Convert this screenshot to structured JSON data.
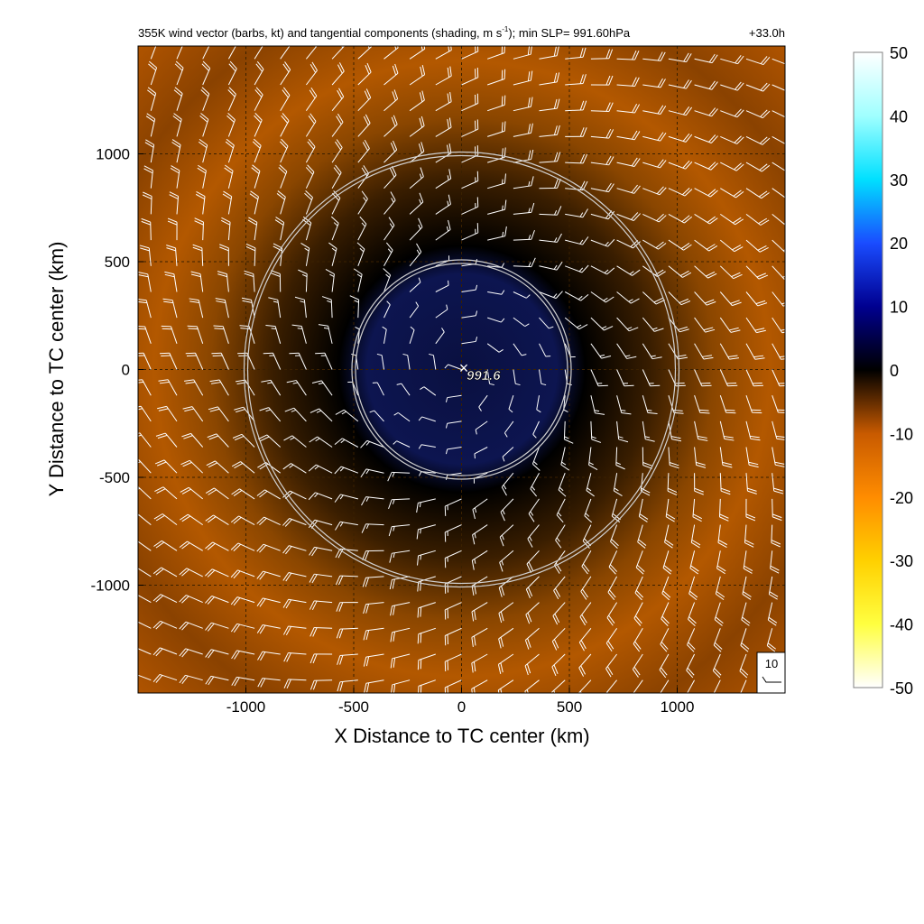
{
  "chart_data": {
    "type": "heatmap",
    "title_main": "355K wind vector (barbs, kt) and tangential components (shading, m s",
    "title_sup": "-1",
    "title_tail": "); min SLP= 991.60hPa",
    "time_label": "+33.0h",
    "xlabel": "X Distance to TC center (km)",
    "ylabel": "Y Distance to TC center (km)",
    "xlim": [
      -1500,
      1500
    ],
    "ylim": [
      -1500,
      1500
    ],
    "xticks": [
      -1000,
      -500,
      0,
      500,
      1000
    ],
    "yticks": [
      -1000,
      -500,
      0,
      500,
      1000
    ],
    "xtick_labels": [
      "-1000",
      "-500",
      "0",
      "500",
      "1000"
    ],
    "ytick_labels": [
      "-1000",
      "-500",
      "0",
      "500",
      "1000"
    ],
    "grid": true,
    "colorbar": {
      "min": -50,
      "max": 50,
      "ticks": [
        50,
        40,
        30,
        20,
        10,
        0,
        -10,
        -20,
        -30,
        -40,
        -50
      ],
      "tick_labels": [
        "50",
        "40",
        "30",
        "20",
        "10",
        "0",
        "-10",
        "-20",
        "-30",
        "-40",
        "-50"
      ],
      "colors": [
        "#ffffff",
        "#ffffe0",
        "#ffff00",
        "#ffc800",
        "#ff8c00",
        "#c85a00",
        "#000000",
        "#000090",
        "#1a3cff",
        "#00e0ff",
        "#e0ffff"
      ]
    },
    "tc_center": {
      "x": 0,
      "y": 0,
      "marker": "×",
      "label": "991.6"
    },
    "range_rings_km": [
      500,
      1000
    ],
    "barb_reference": {
      "label": "10",
      "units": "kt"
    },
    "field_description_values": {
      "inner_core_tangential_ms": 5,
      "outer_band_tangential_ms": -18
    }
  },
  "colors": {
    "frame": "#000000",
    "ring": "#d0d0d0",
    "grid": "#3a2000",
    "barb": "#ffffff"
  }
}
